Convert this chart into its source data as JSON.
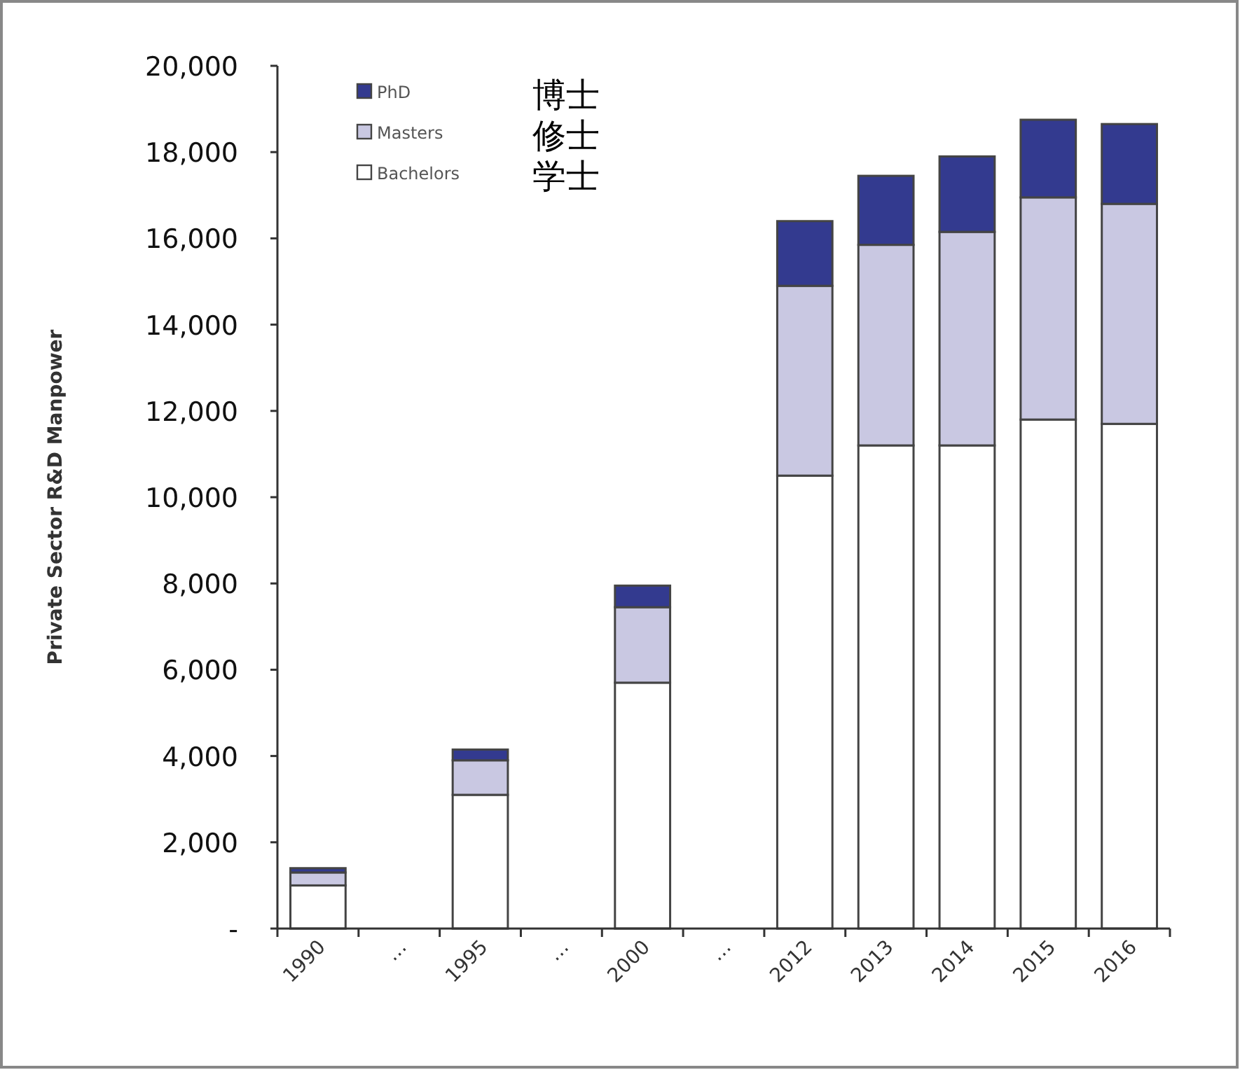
{
  "chart_data": {
    "type": "bar",
    "stacked": true,
    "ylabel": "Private Sector R&D Manpower",
    "categories": [
      "1990",
      "…",
      "1995",
      "…",
      "2000",
      "…",
      "2012",
      "2013",
      "2014",
      "2015",
      "2016"
    ],
    "series": [
      {
        "name": "Bachelors",
        "color": "#ffffff",
        "values": [
          1000,
          null,
          3100,
          null,
          5700,
          null,
          10500,
          11200,
          11200,
          11800,
          11700
        ]
      },
      {
        "name": "Masters",
        "color": "#c9c8e2",
        "values": [
          300,
          null,
          800,
          null,
          1750,
          null,
          4400,
          4650,
          4950,
          5150,
          5100
        ]
      },
      {
        "name": "PhD",
        "color": "#333a8f",
        "values": [
          100,
          null,
          250,
          null,
          500,
          null,
          1500,
          1600,
          1750,
          1800,
          1850
        ]
      }
    ],
    "ylim": [
      0,
      20000
    ],
    "yticks": [
      {
        "value": 0,
        "label": "-"
      },
      {
        "value": 2000,
        "label": "2,000"
      },
      {
        "value": 4000,
        "label": "4,000"
      },
      {
        "value": 6000,
        "label": "6,000"
      },
      {
        "value": 8000,
        "label": "8,000"
      },
      {
        "value": 10000,
        "label": "10,000"
      },
      {
        "value": 12000,
        "label": "12,000"
      },
      {
        "value": 14000,
        "label": "14,000"
      },
      {
        "value": 16000,
        "label": "16,000"
      },
      {
        "value": 18000,
        "label": "18,000"
      },
      {
        "value": 20000,
        "label": "20,000"
      }
    ],
    "legend": "top left",
    "annotations": [
      "学士",
      "修士",
      "博士"
    ]
  }
}
